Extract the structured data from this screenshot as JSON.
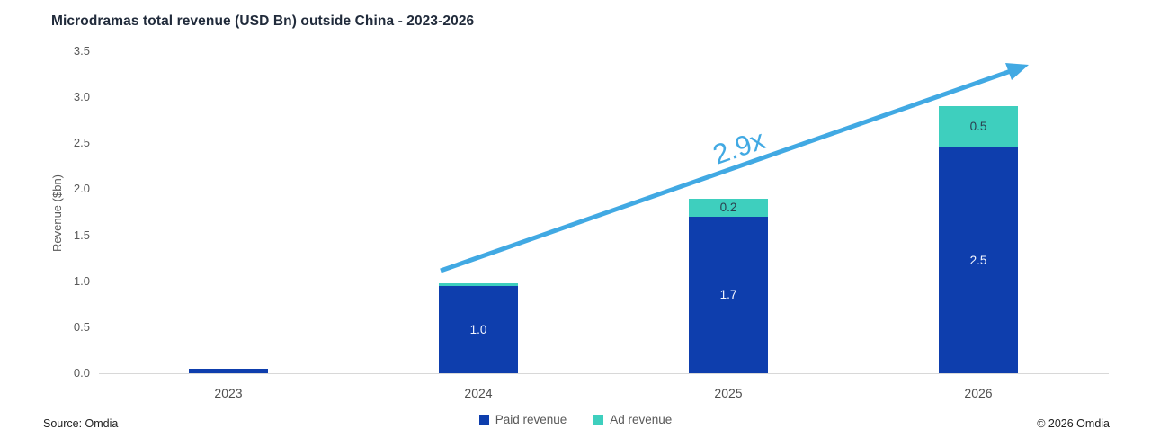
{
  "figure": {
    "title": "Microdramas total revenue (USD Bn) outside China - 2023-2026",
    "source": "Source: Omdia",
    "copyright": "© 2026 Omdia"
  },
  "chart_data": {
    "type": "bar",
    "stacked": true,
    "title": "Microdramas total revenue (USD Bn) outside China - 2023-2026",
    "xlabel": "",
    "ylabel": "Revenue ($bn)",
    "ylim": [
      0.0,
      3.5
    ],
    "ytick_labels": [
      "0.0",
      "0.5",
      "1.0",
      "1.5",
      "2.0",
      "2.5",
      "3.0",
      "3.5"
    ],
    "grid": false,
    "legend_position": "bottom",
    "categories": [
      "2023",
      "2024",
      "2025",
      "2026"
    ],
    "series": [
      {
        "name": "Paid revenue",
        "color": "#0e3ead",
        "values": [
          0.05,
          0.95,
          1.7,
          2.45
        ],
        "labels": [
          "",
          "1.0",
          "1.7",
          "2.5"
        ],
        "label_color": "#f3f6ff"
      },
      {
        "name": "Ad revenue",
        "color": "#3ecfbe",
        "values": [
          0.0,
          0.03,
          0.2,
          0.45
        ],
        "labels": [
          "",
          "",
          "0.2",
          "0.5"
        ],
        "label_color": "#2b4150"
      }
    ],
    "annotation": {
      "text": "2.9x",
      "color": "#41a9e3",
      "meaning": "growth multiple from 2024 to 2026 shown by arrow"
    }
  }
}
